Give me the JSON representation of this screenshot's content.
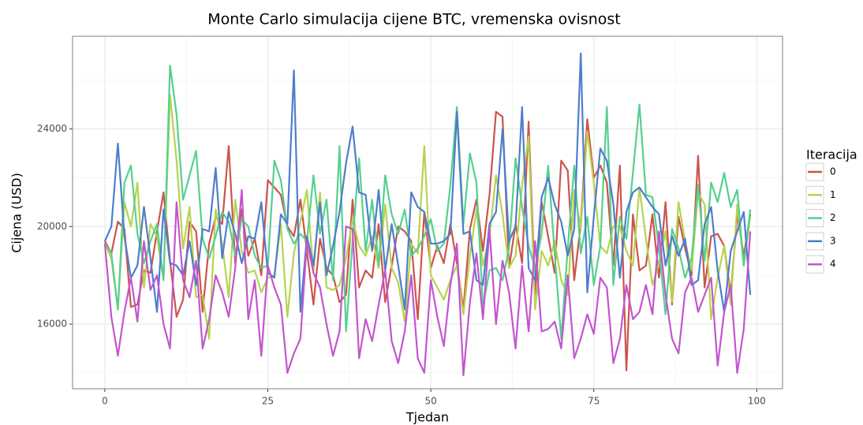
{
  "chart_data": {
    "type": "line",
    "title": "Monte Carlo simulacija cijene BTC, vremenska ovisnost",
    "x_label": "Tjedan",
    "y_label": "Cijena (USD)",
    "legend_title": "Iteracija",
    "legend_position": "right",
    "grid": true,
    "xlim": [
      -4.95,
      103.95
    ],
    "xticks": [
      0,
      25,
      50,
      75,
      100
    ],
    "x_minor_ticks": [
      12.5,
      37.5,
      62.5,
      87.5
    ],
    "ylim": [
      13350,
      27800
    ],
    "yticks": [
      16000,
      20000,
      24000
    ],
    "y_minor_ticks": [
      14000,
      18000,
      22000,
      26000
    ],
    "x": [
      0,
      1,
      2,
      3,
      4,
      5,
      6,
      7,
      8,
      9,
      10,
      11,
      12,
      13,
      14,
      15,
      16,
      17,
      18,
      19,
      20,
      21,
      22,
      23,
      24,
      25,
      26,
      27,
      28,
      29,
      30,
      31,
      32,
      33,
      34,
      35,
      36,
      37,
      38,
      39,
      40,
      41,
      42,
      43,
      44,
      45,
      46,
      47,
      48,
      49,
      50,
      51,
      52,
      53,
      54,
      55,
      56,
      57,
      58,
      59,
      60,
      61,
      62,
      63,
      64,
      65,
      66,
      67,
      68,
      69,
      70,
      71,
      72,
      73,
      74,
      75,
      76,
      77,
      78,
      79,
      80,
      81,
      82,
      83,
      84,
      85,
      86,
      87,
      88,
      89,
      90,
      91,
      92,
      93,
      94,
      95,
      96,
      97,
      98,
      99
    ],
    "series": [
      {
        "name": "0",
        "color": "#cc544c",
        "values": [
          19400,
          18900,
          20200,
          19900,
          16700,
          16800,
          18200,
          18100,
          19800,
          21400,
          18600,
          16300,
          17000,
          20200,
          19800,
          16500,
          19300,
          20400,
          20100,
          23300,
          18500,
          20700,
          18800,
          19500,
          18000,
          21900,
          21600,
          21300,
          20000,
          19600,
          21100,
          19000,
          16800,
          19500,
          18300,
          18000,
          16900,
          17200,
          21100,
          17500,
          18200,
          17900,
          20100,
          16900,
          18400,
          20000,
          19800,
          19400,
          16200,
          20600,
          18300,
          19200,
          18500,
          20100,
          18500,
          16600,
          19900,
          21100,
          19000,
          21300,
          24700,
          24500,
          18300,
          20100,
          18500,
          24300,
          17200,
          21000,
          19600,
          18100,
          22700,
          22300,
          17800,
          20100,
          24400,
          22000,
          22500,
          21800,
          18400,
          22500,
          14100,
          20500,
          18200,
          18400,
          20500,
          17900,
          21000,
          16800,
          20400,
          19100,
          18000,
          22900,
          17500,
          19600,
          19700,
          19200,
          17200,
          20500,
          18800,
          20500
        ]
      },
      {
        "name": "1",
        "color": "#b7d34e",
        "values": [
          19300,
          18700,
          16600,
          21000,
          20000,
          21800,
          17500,
          20100,
          19600,
          17800,
          25400,
          22700,
          19100,
          20800,
          17100,
          17200,
          15400,
          20700,
          19300,
          17100,
          21100,
          19000,
          18100,
          18200,
          17300,
          17900,
          18000,
          20100,
          16300,
          18900,
          20200,
          21500,
          18100,
          21400,
          17500,
          17400,
          17600,
          18700,
          20300,
          19200,
          18800,
          19600,
          18300,
          20900,
          18300,
          17700,
          16100,
          19300,
          18900,
          23300,
          18000,
          17500,
          17000,
          17800,
          18400,
          16400,
          18800,
          20700,
          18400,
          19600,
          22100,
          20500,
          18300,
          18800,
          21700,
          23700,
          16600,
          19000,
          18400,
          19400,
          17800,
          17200,
          21500,
          19900,
          23900,
          21800,
          19200,
          18900,
          20000,
          20000,
          19000,
          18400,
          21600,
          19500,
          17600,
          18500,
          19800,
          16900,
          21000,
          19400,
          18200,
          21400,
          20900,
          16200,
          17900,
          19200,
          16800,
          20900,
          18400,
          20400
        ]
      },
      {
        "name": "2",
        "color": "#55d08f",
        "values": [
          19300,
          18900,
          16600,
          21800,
          22500,
          19700,
          18500,
          19400,
          20100,
          17800,
          26600,
          24600,
          21100,
          22100,
          23100,
          19500,
          18700,
          19600,
          20600,
          20200,
          18800,
          20300,
          20000,
          18800,
          18300,
          18400,
          22700,
          21900,
          19900,
          19300,
          19700,
          19400,
          22100,
          19700,
          21100,
          17800,
          23300,
          15700,
          19400,
          22800,
          19000,
          21100,
          18400,
          22100,
          20500,
          19700,
          20700,
          18800,
          19100,
          19600,
          20300,
          19000,
          19300,
          21700,
          24900,
          20100,
          23000,
          21800,
          16700,
          18200,
          18300,
          17800,
          19100,
          22800,
          20800,
          19200,
          18300,
          19700,
          22500,
          18900,
          15400,
          19100,
          22500,
          18900,
          20400,
          17600,
          19200,
          24900,
          17600,
          20400,
          19500,
          22200,
          25000,
          21300,
          21200,
          19100,
          16400,
          19900,
          19100,
          17900,
          18700,
          21700,
          18600,
          21800,
          21000,
          22200,
          20800,
          21500,
          18400,
          20700
        ]
      },
      {
        "name": "3",
        "color": "#4f7dcc",
        "values": [
          19400,
          20000,
          23400,
          19600,
          17900,
          18400,
          20800,
          18700,
          16500,
          20700,
          18500,
          18400,
          18000,
          19400,
          17600,
          19900,
          19800,
          22400,
          18700,
          20600,
          19700,
          18500,
          19600,
          19500,
          21000,
          18100,
          17900,
          20500,
          20100,
          26400,
          16500,
          19600,
          18400,
          21000,
          18000,
          19200,
          20600,
          22600,
          24100,
          21400,
          21300,
          19000,
          21500,
          18200,
          20100,
          18400,
          16600,
          21400,
          20800,
          20600,
          19300,
          19300,
          19400,
          19700,
          24700,
          19700,
          19800,
          17800,
          17600,
          20100,
          20600,
          24000,
          19400,
          20000,
          24900,
          18300,
          17800,
          21200,
          22000,
          20900,
          20200,
          18800,
          19900,
          27100,
          17300,
          20400,
          23200,
          22700,
          20900,
          17900,
          20600,
          21400,
          21600,
          21200,
          20800,
          20500,
          18400,
          19600,
          18800,
          19500,
          17600,
          17800,
          20100,
          20800,
          18200,
          16500,
          19000,
          19800,
          20600,
          17200
        ]
      },
      {
        "name": "4",
        "color": "#c355cf",
        "values": [
          19300,
          16300,
          14700,
          16500,
          17900,
          16100,
          19400,
          17400,
          18000,
          16000,
          15000,
          21000,
          17800,
          17100,
          18600,
          15000,
          16200,
          18000,
          17300,
          16300,
          18300,
          21500,
          16200,
          17800,
          14700,
          18400,
          17500,
          16800,
          14000,
          14800,
          15400,
          19400,
          18100,
          17500,
          16000,
          14700,
          15700,
          20000,
          19900,
          14600,
          16200,
          15300,
          16800,
          18200,
          15300,
          14400,
          15700,
          18000,
          14600,
          14000,
          17800,
          16300,
          15100,
          17600,
          19300,
          13900,
          16900,
          18900,
          16200,
          19900,
          16000,
          18600,
          17300,
          15000,
          18400,
          15700,
          19400,
          15700,
          15800,
          16100,
          15000,
          18000,
          14600,
          15400,
          16400,
          15600,
          17900,
          17500,
          14400,
          15400,
          17600,
          16200,
          16500,
          17600,
          16400,
          19800,
          17200,
          15400,
          14800,
          17300,
          17900,
          16500,
          17200,
          17900,
          14300,
          16500,
          17600,
          14000,
          15800,
          19800
        ]
      }
    ]
  }
}
